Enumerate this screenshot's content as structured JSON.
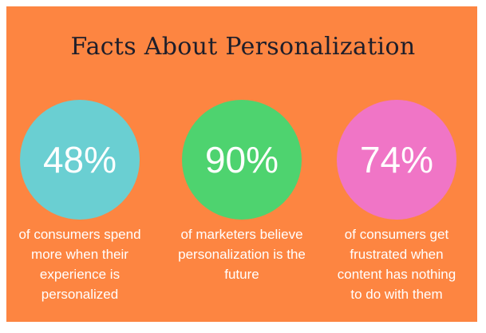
{
  "title": "Facts About Personalization",
  "colors": {
    "background": "#FD8541",
    "title": "#1e1e2a",
    "circle_1": "#6ACFD2",
    "circle_2": "#4ED36F",
    "circle_3": "#F075C6",
    "text": "#FFFFFF"
  },
  "stats": [
    {
      "value": "48%",
      "lines": [
        "of consumers spend",
        "more when their",
        "experience is",
        "personalized"
      ]
    },
    {
      "value": "90%",
      "lines": [
        "of marketers believe",
        "personalization is the",
        "future"
      ]
    },
    {
      "value": "74%",
      "lines": [
        "of consumers get",
        "frustrated when",
        "content has nothing",
        "to do with them"
      ]
    }
  ]
}
